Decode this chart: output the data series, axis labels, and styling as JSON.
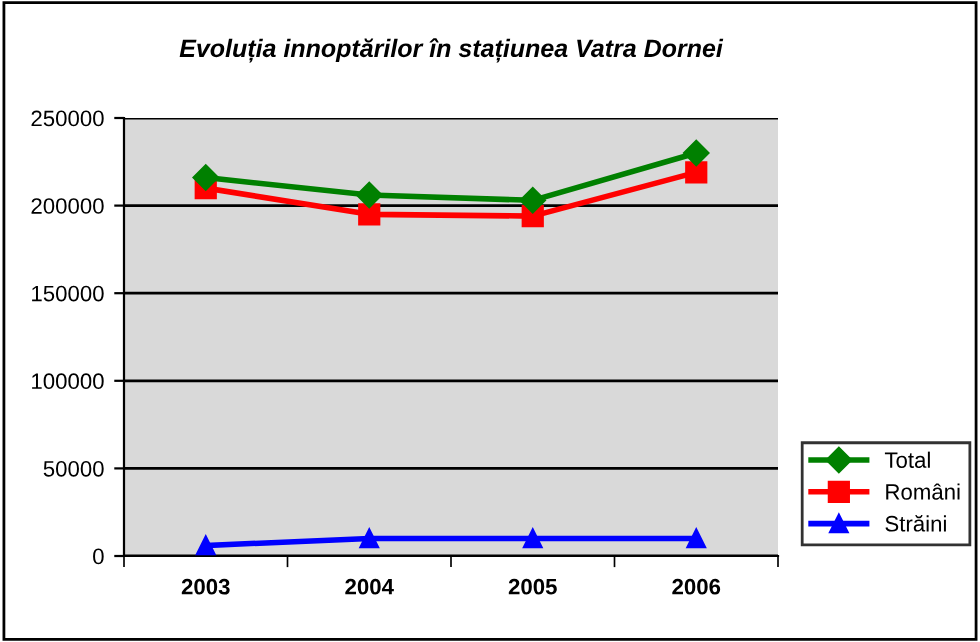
{
  "chart_data": {
    "type": "line",
    "title": "Evoluția innoptărilor în stațiunea Vatra Dornei",
    "categories": [
      "2003",
      "2004",
      "2005",
      "2006"
    ],
    "series": [
      {
        "name": "Total",
        "color": "#008000",
        "values": [
          216000,
          206000,
          203000,
          230000
        ],
        "marker": "diamond"
      },
      {
        "name": "Români",
        "color": "#ff0000",
        "values": [
          210000,
          195000,
          194000,
          219000
        ],
        "marker": "square"
      },
      {
        "name": "Străini",
        "color": "#0000ff",
        "values": [
          6000,
          10000,
          10000,
          10000
        ],
        "marker": "triangle"
      }
    ],
    "ylim": [
      0,
      250000
    ],
    "yticks": [
      0,
      50000,
      100000,
      150000,
      200000,
      250000
    ],
    "grid": "y",
    "legend": "right",
    "line_style": "solid"
  }
}
